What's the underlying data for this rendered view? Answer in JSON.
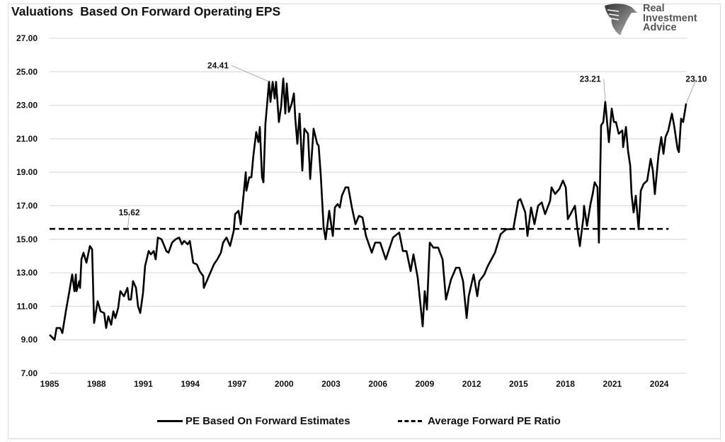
{
  "chart_data": {
    "type": "line",
    "title": "Valuations  Based On Forward Operating EPS",
    "xlabel": "",
    "ylabel": "",
    "xlim": [
      1985,
      2026.5
    ],
    "ylim": [
      7,
      27
    ],
    "x_ticks": [
      "1985",
      "1988",
      "1991",
      "1994",
      "1997",
      "2000",
      "2003",
      "2006",
      "2009",
      "2012",
      "2015",
      "2018",
      "2021",
      "2024"
    ],
    "y_ticks": [
      "7.00",
      "9.00",
      "11.00",
      "13.00",
      "15.00",
      "17.00",
      "19.00",
      "21.00",
      "23.00",
      "25.00",
      "27.00"
    ],
    "grid": "horizontal",
    "legend_position": "bottom",
    "series": [
      {
        "name": "PE Based On Forward Estimates",
        "style": "solid",
        "color": "#000000",
        "points": [
          [
            1985.0,
            9.3
          ],
          [
            1985.32,
            9.0
          ],
          [
            1985.45,
            9.7
          ],
          [
            1985.68,
            9.7
          ],
          [
            1985.82,
            9.4
          ],
          [
            1986.04,
            10.7
          ],
          [
            1986.27,
            11.9
          ],
          [
            1986.45,
            12.9
          ],
          [
            1986.59,
            11.9
          ],
          [
            1986.68,
            12.9
          ],
          [
            1986.72,
            11.9
          ],
          [
            1986.9,
            12.5
          ],
          [
            1986.95,
            12.1
          ],
          [
            1987.04,
            13.8
          ],
          [
            1987.17,
            14.2
          ],
          [
            1987.36,
            13.6
          ],
          [
            1987.58,
            14.6
          ],
          [
            1987.72,
            14.4
          ],
          [
            1987.85,
            10.0
          ],
          [
            1988.08,
            11.3
          ],
          [
            1988.26,
            10.7
          ],
          [
            1988.49,
            10.6
          ],
          [
            1988.62,
            9.7
          ],
          [
            1988.76,
            10.4
          ],
          [
            1988.94,
            9.9
          ],
          [
            1989.08,
            10.7
          ],
          [
            1989.21,
            10.3
          ],
          [
            1989.39,
            10.9
          ],
          [
            1989.53,
            11.9
          ],
          [
            1989.76,
            11.6
          ],
          [
            1989.98,
            12.1
          ],
          [
            1990.07,
            11.4
          ],
          [
            1990.21,
            11.4
          ],
          [
            1990.34,
            12.5
          ],
          [
            1990.53,
            12.1
          ],
          [
            1990.66,
            11.0
          ],
          [
            1990.8,
            10.6
          ],
          [
            1990.98,
            11.8
          ],
          [
            1991.11,
            13.4
          ],
          [
            1991.34,
            14.3
          ],
          [
            1991.48,
            14.1
          ],
          [
            1991.66,
            14.3
          ],
          [
            1991.79,
            13.8
          ],
          [
            1991.93,
            15.1
          ],
          [
            1992.16,
            15.0
          ],
          [
            1992.34,
            14.6
          ],
          [
            1992.47,
            14.3
          ],
          [
            1992.61,
            14.2
          ],
          [
            1992.84,
            14.8
          ],
          [
            1993.06,
            15.0
          ],
          [
            1993.29,
            15.1
          ],
          [
            1993.47,
            14.7
          ],
          [
            1993.61,
            14.9
          ],
          [
            1993.83,
            14.7
          ],
          [
            1993.97,
            14.9
          ],
          [
            1994.19,
            13.6
          ],
          [
            1994.42,
            13.5
          ],
          [
            1994.6,
            13.1
          ],
          [
            1994.83,
            12.8
          ],
          [
            1994.87,
            12.1
          ],
          [
            1995.19,
            12.8
          ],
          [
            1995.51,
            13.5
          ],
          [
            1995.73,
            13.8
          ],
          [
            1995.96,
            14.2
          ],
          [
            1996.1,
            14.8
          ],
          [
            1996.32,
            15.1
          ],
          [
            1996.55,
            14.6
          ],
          [
            1996.78,
            15.5
          ],
          [
            1996.87,
            16.5
          ],
          [
            1997.09,
            16.7
          ],
          [
            1997.23,
            15.9
          ],
          [
            1997.55,
            19.0
          ],
          [
            1997.59,
            17.9
          ],
          [
            1997.77,
            18.7
          ],
          [
            1997.91,
            18.7
          ],
          [
            1998.04,
            20.0
          ],
          [
            1998.22,
            21.4
          ],
          [
            1998.36,
            20.8
          ],
          [
            1998.45,
            21.7
          ],
          [
            1998.59,
            18.7
          ],
          [
            1998.68,
            18.4
          ],
          [
            1998.81,
            21.9
          ],
          [
            1999.04,
            24.41
          ],
          [
            1999.13,
            23.2
          ],
          [
            1999.27,
            24.4
          ],
          [
            1999.4,
            23.4
          ],
          [
            1999.49,
            24.4
          ],
          [
            1999.67,
            22.0
          ],
          [
            1999.81,
            22.9
          ],
          [
            1999.95,
            24.6
          ],
          [
            2000.08,
            22.5
          ],
          [
            2000.17,
            24.3
          ],
          [
            2000.31,
            22.6
          ],
          [
            2000.49,
            23.1
          ],
          [
            2000.63,
            23.7
          ],
          [
            2000.72,
            22.2
          ],
          [
            2000.85,
            20.7
          ],
          [
            2000.99,
            22.5
          ],
          [
            2001.17,
            19.1
          ],
          [
            2001.3,
            21.6
          ],
          [
            2001.53,
            21.3
          ],
          [
            2001.67,
            18.6
          ],
          [
            2001.89,
            21.6
          ],
          [
            2002.12,
            20.7
          ],
          [
            2002.21,
            20.6
          ],
          [
            2002.35,
            18.8
          ],
          [
            2002.53,
            15.7
          ],
          [
            2002.66,
            15.0
          ],
          [
            2002.89,
            16.7
          ],
          [
            2003.12,
            15.2
          ],
          [
            2003.25,
            16.9
          ],
          [
            2003.43,
            17.1
          ],
          [
            2003.57,
            16.9
          ],
          [
            2003.7,
            17.6
          ],
          [
            2003.93,
            18.1
          ],
          [
            2004.11,
            18.1
          ],
          [
            2004.34,
            16.9
          ],
          [
            2004.57,
            15.9
          ],
          [
            2004.79,
            16.4
          ],
          [
            2005.02,
            16.3
          ],
          [
            2005.24,
            15.2
          ],
          [
            2005.61,
            14.2
          ],
          [
            2005.83,
            14.8
          ],
          [
            2006.15,
            14.8
          ],
          [
            2006.51,
            13.8
          ],
          [
            2006.97,
            15.1
          ],
          [
            2007.37,
            15.4
          ],
          [
            2007.6,
            14.3
          ],
          [
            2007.83,
            14.3
          ],
          [
            2008.1,
            13.1
          ],
          [
            2008.28,
            14.1
          ],
          [
            2008.55,
            12.7
          ],
          [
            2008.87,
            9.8
          ],
          [
            2009.0,
            11.9
          ],
          [
            2009.14,
            10.8
          ],
          [
            2009.32,
            14.8
          ],
          [
            2009.55,
            14.5
          ],
          [
            2009.86,
            14.5
          ],
          [
            2010.14,
            13.8
          ],
          [
            2010.36,
            11.4
          ],
          [
            2010.68,
            12.6
          ],
          [
            2011.0,
            13.3
          ],
          [
            2011.22,
            13.3
          ],
          [
            2011.45,
            12.5
          ],
          [
            2011.68,
            10.3
          ],
          [
            2011.81,
            11.6
          ],
          [
            2012.13,
            12.9
          ],
          [
            2012.36,
            11.6
          ],
          [
            2012.49,
            12.5
          ],
          [
            2012.81,
            12.9
          ],
          [
            2013.03,
            13.4
          ],
          [
            2013.49,
            14.2
          ],
          [
            2013.85,
            15.3
          ],
          [
            2014.21,
            15.6
          ],
          [
            2014.66,
            15.6
          ],
          [
            2014.98,
            17.3
          ],
          [
            2015.12,
            17.4
          ],
          [
            2015.43,
            16.6
          ],
          [
            2015.57,
            15.2
          ],
          [
            2015.8,
            16.9
          ],
          [
            2016.02,
            15.9
          ],
          [
            2016.25,
            17.0
          ],
          [
            2016.48,
            17.2
          ],
          [
            2016.7,
            16.5
          ],
          [
            2017.02,
            17.3
          ],
          [
            2017.11,
            18.1
          ],
          [
            2017.34,
            17.7
          ],
          [
            2017.61,
            18.0
          ],
          [
            2017.84,
            18.5
          ],
          [
            2018.02,
            18.1
          ],
          [
            2018.15,
            16.2
          ],
          [
            2018.38,
            16.6
          ],
          [
            2018.61,
            17.0
          ],
          [
            2018.74,
            15.8
          ],
          [
            2018.92,
            14.6
          ],
          [
            2019.15,
            16.3
          ],
          [
            2019.19,
            17.0
          ],
          [
            2019.38,
            15.8
          ],
          [
            2019.6,
            17.1
          ],
          [
            2019.74,
            17.7
          ],
          [
            2019.87,
            18.4
          ],
          [
            2020.05,
            18.1
          ],
          [
            2020.14,
            14.8
          ],
          [
            2020.28,
            21.8
          ],
          [
            2020.42,
            22.0
          ],
          [
            2020.55,
            23.21
          ],
          [
            2020.78,
            20.8
          ],
          [
            2020.96,
            22.8
          ],
          [
            2021.1,
            22.0
          ],
          [
            2021.23,
            22.0
          ],
          [
            2021.41,
            21.3
          ],
          [
            2021.64,
            21.5
          ],
          [
            2021.69,
            20.5
          ],
          [
            2021.87,
            21.7
          ],
          [
            2022.0,
            20.3
          ],
          [
            2022.14,
            19.4
          ],
          [
            2022.23,
            17.7
          ],
          [
            2022.36,
            16.6
          ],
          [
            2022.5,
            17.6
          ],
          [
            2022.68,
            15.6
          ],
          [
            2022.82,
            17.9
          ],
          [
            2023.0,
            18.3
          ],
          [
            2023.23,
            18.5
          ],
          [
            2023.45,
            19.8
          ],
          [
            2023.59,
            19.1
          ],
          [
            2023.72,
            17.7
          ],
          [
            2023.95,
            20.0
          ],
          [
            2024.13,
            21.1
          ],
          [
            2024.27,
            20.1
          ],
          [
            2024.4,
            21.1
          ],
          [
            2024.58,
            21.5
          ],
          [
            2024.81,
            22.5
          ],
          [
            2024.95,
            21.8
          ],
          [
            2025.17,
            20.4
          ],
          [
            2025.26,
            20.2
          ],
          [
            2025.4,
            22.2
          ],
          [
            2025.53,
            22.0
          ],
          [
            2025.72,
            23.1
          ]
        ]
      },
      {
        "name": "Average Forward PE Ratio",
        "style": "dashed",
        "color": "#000000",
        "value": 15.62,
        "x_range": [
          1985,
          2024.6
        ]
      }
    ],
    "annotations": [
      {
        "text": "24.41",
        "x": 1999.04,
        "y": 24.41,
        "label_dx_years": -3.4,
        "label_dy": 0.8
      },
      {
        "text": "15.62",
        "x": 1990.0,
        "y": 15.62,
        "label_dx_years": 0.1,
        "label_dy": 0.8
      },
      {
        "text": "23.21",
        "x": 2020.55,
        "y": 23.21,
        "label_dx_years": -1.1,
        "label_dy": 1.2
      },
      {
        "text": "23.10",
        "x": 2025.72,
        "y": 23.1,
        "label_dx_years": 0.65,
        "label_dy": 1.3
      }
    ]
  },
  "logo": {
    "line1": "Real",
    "line2": "Investment",
    "line3": "Advice"
  }
}
